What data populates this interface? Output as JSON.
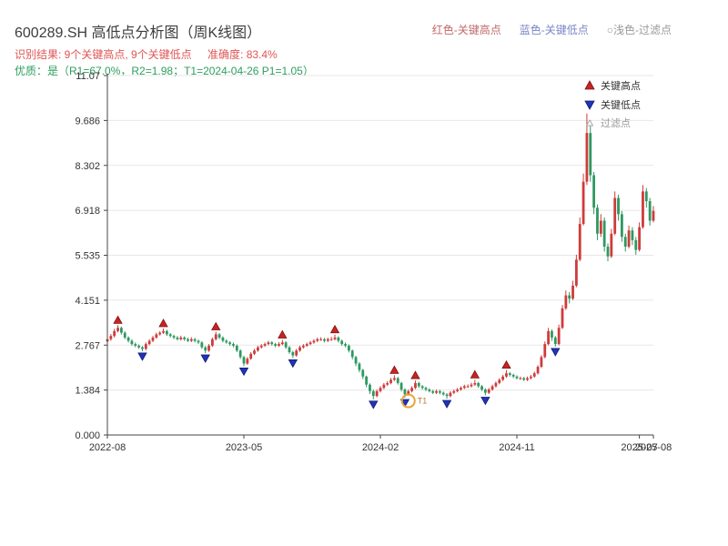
{
  "header": {
    "title": "600289.SH 高低点分析图（周K线图）",
    "top_legend": [
      {
        "label": "红色-关键高点",
        "color": "#c06a6a"
      },
      {
        "label": "蓝色-关键低点",
        "color": "#7b86c8"
      },
      {
        "label": "○浅色-过滤点",
        "color": "#9a9a9a"
      }
    ],
    "result_text": "识别结果: 9个关键高点, 9个关键低点",
    "accuracy_text": "准确度: 83.4%",
    "quality_line": "优质：是（R1=67.0%，R2=1.98；T1=2024-04-26 P1=1.05）"
  },
  "legend": {
    "high": "关键高点",
    "low": "关键低点",
    "filtered": "过滤点"
  },
  "colors": {
    "up": "#cf3b3b",
    "down": "#2e9960",
    "key_high": "#cc2222",
    "key_high_edge": "#7a1010",
    "key_low": "#2233bb",
    "key_low_edge": "#101a6e",
    "grid": "#e7e7e7",
    "axis": "#444444",
    "tick_text": "#333333",
    "annotation": "#e8a33d",
    "annotation_text": "#b08030",
    "filtered": "#aaaaaa"
  },
  "chart_data": {
    "type": "candlestick",
    "title": "600289.SH 高低点分析图（周K线图）",
    "symbol": "600289.SH",
    "period": "weekly",
    "ylim": [
      0,
      11.07
    ],
    "y_max": 11.07,
    "grid": true,
    "legend_position": "upper-right",
    "y_ticks": [
      {
        "v": 0,
        "label": "0.000"
      },
      {
        "v": 1.384,
        "label": "1.384"
      },
      {
        "v": 2.767,
        "label": "2.767"
      },
      {
        "v": 4.151,
        "label": "4.151"
      },
      {
        "v": 5.535,
        "label": "5.535"
      },
      {
        "v": 6.918,
        "label": "6.918"
      },
      {
        "v": 8.302,
        "label": "8.302"
      },
      {
        "v": 9.686,
        "label": "9.686"
      },
      {
        "v": 11.07,
        "label": "11.07"
      }
    ],
    "x_ticks": [
      {
        "i": 0,
        "label": "2022-08"
      },
      {
        "i": 39,
        "label": "2023-05"
      },
      {
        "i": 78,
        "label": "2024-02"
      },
      {
        "i": 117,
        "label": "2024-11"
      },
      {
        "i": 152,
        "label": "2025-07"
      },
      {
        "i": 156,
        "label": "2025-08"
      }
    ],
    "candles": [
      [
        2.88,
        3.01,
        2.83,
        2.95
      ],
      [
        2.95,
        3.11,
        2.9,
        3.05
      ],
      [
        3.05,
        3.27,
        3.0,
        3.2
      ],
      [
        3.2,
        3.38,
        3.16,
        3.3
      ],
      [
        3.3,
        3.34,
        3.09,
        3.15
      ],
      [
        3.15,
        3.19,
        2.95,
        3.0
      ],
      [
        3.0,
        3.04,
        2.85,
        2.9
      ],
      [
        2.9,
        2.95,
        2.75,
        2.8
      ],
      [
        2.8,
        2.85,
        2.7,
        2.75
      ],
      [
        2.75,
        2.79,
        2.65,
        2.7
      ],
      [
        2.7,
        2.74,
        2.58,
        2.65
      ],
      [
        2.65,
        2.85,
        2.61,
        2.8
      ],
      [
        2.8,
        2.95,
        2.76,
        2.9
      ],
      [
        2.9,
        3.05,
        2.86,
        3.0
      ],
      [
        3.0,
        3.15,
        2.96,
        3.1
      ],
      [
        3.1,
        3.2,
        3.06,
        3.15
      ],
      [
        3.15,
        3.28,
        3.11,
        3.2
      ],
      [
        3.2,
        3.24,
        3.05,
        3.1
      ],
      [
        3.1,
        3.14,
        3.0,
        3.05
      ],
      [
        3.05,
        3.09,
        2.95,
        3.0
      ],
      [
        3.0,
        3.05,
        2.91,
        2.95
      ],
      [
        2.95,
        3.06,
        2.91,
        3.0
      ],
      [
        3.0,
        3.04,
        2.9,
        2.95
      ],
      [
        2.95,
        3.0,
        2.86,
        2.9
      ],
      [
        2.9,
        3.01,
        2.86,
        2.95
      ],
      [
        2.95,
        2.99,
        2.85,
        2.9
      ],
      [
        2.9,
        2.94,
        2.8,
        2.85
      ],
      [
        2.85,
        2.89,
        2.65,
        2.7
      ],
      [
        2.7,
        2.74,
        2.52,
        2.6
      ],
      [
        2.6,
        2.8,
        2.56,
        2.75
      ],
      [
        2.75,
        3.0,
        2.71,
        2.95
      ],
      [
        2.95,
        3.18,
        2.91,
        3.1
      ],
      [
        3.1,
        3.14,
        2.95,
        3.0
      ],
      [
        3.0,
        3.04,
        2.85,
        2.9
      ],
      [
        2.9,
        2.95,
        2.81,
        2.85
      ],
      [
        2.85,
        2.89,
        2.75,
        2.8
      ],
      [
        2.8,
        2.85,
        2.7,
        2.75
      ],
      [
        2.75,
        2.79,
        2.55,
        2.6
      ],
      [
        2.6,
        2.64,
        2.34,
        2.4
      ],
      [
        2.4,
        2.44,
        2.12,
        2.2
      ],
      [
        2.2,
        2.4,
        2.16,
        2.35
      ],
      [
        2.35,
        2.55,
        2.31,
        2.5
      ],
      [
        2.5,
        2.65,
        2.46,
        2.6
      ],
      [
        2.6,
        2.75,
        2.56,
        2.7
      ],
      [
        2.7,
        2.8,
        2.66,
        2.75
      ],
      [
        2.75,
        2.85,
        2.71,
        2.8
      ],
      [
        2.8,
        2.9,
        2.76,
        2.85
      ],
      [
        2.85,
        2.89,
        2.75,
        2.8
      ],
      [
        2.8,
        2.84,
        2.7,
        2.75
      ],
      [
        2.75,
        2.86,
        2.71,
        2.8
      ],
      [
        2.8,
        2.93,
        2.76,
        2.85
      ],
      [
        2.85,
        2.89,
        2.65,
        2.7
      ],
      [
        2.7,
        2.74,
        2.5,
        2.55
      ],
      [
        2.55,
        2.59,
        2.37,
        2.45
      ],
      [
        2.45,
        2.65,
        2.41,
        2.6
      ],
      [
        2.6,
        2.75,
        2.56,
        2.7
      ],
      [
        2.7,
        2.8,
        2.66,
        2.75
      ],
      [
        2.75,
        2.85,
        2.71,
        2.8
      ],
      [
        2.8,
        2.9,
        2.76,
        2.85
      ],
      [
        2.85,
        2.95,
        2.81,
        2.9
      ],
      [
        2.9,
        3.0,
        2.86,
        2.95
      ],
      [
        2.95,
        3.01,
        2.9,
        2.95
      ],
      [
        2.95,
        2.99,
        2.85,
        2.9
      ],
      [
        2.9,
        3.0,
        2.86,
        2.95
      ],
      [
        2.95,
        3.02,
        2.9,
        2.95
      ],
      [
        2.95,
        3.09,
        2.91,
        3.0
      ],
      [
        3.0,
        3.04,
        2.85,
        2.9
      ],
      [
        2.9,
        2.94,
        2.75,
        2.8
      ],
      [
        2.8,
        2.85,
        2.7,
        2.75
      ],
      [
        2.75,
        2.79,
        2.54,
        2.6
      ],
      [
        2.6,
        2.63,
        2.33,
        2.4
      ],
      [
        2.4,
        2.44,
        2.12,
        2.2
      ],
      [
        2.2,
        2.24,
        1.93,
        2.0
      ],
      [
        2.0,
        2.04,
        1.72,
        1.8
      ],
      [
        1.8,
        1.83,
        1.47,
        1.55
      ],
      [
        1.55,
        1.59,
        1.26,
        1.35
      ],
      [
        1.35,
        1.4,
        1.1,
        1.2
      ],
      [
        1.2,
        1.4,
        1.16,
        1.35
      ],
      [
        1.35,
        1.5,
        1.31,
        1.45
      ],
      [
        1.45,
        1.6,
        1.41,
        1.55
      ],
      [
        1.55,
        1.66,
        1.51,
        1.6
      ],
      [
        1.6,
        1.76,
        1.56,
        1.7
      ],
      [
        1.7,
        1.84,
        1.66,
        1.75
      ],
      [
        1.75,
        1.79,
        1.55,
        1.6
      ],
      [
        1.6,
        1.64,
        1.34,
        1.4
      ],
      [
        1.4,
        1.44,
        1.15,
        1.25
      ],
      [
        1.25,
        1.4,
        1.21,
        1.35
      ],
      [
        1.35,
        1.5,
        1.31,
        1.45
      ],
      [
        1.45,
        1.68,
        1.41,
        1.6
      ],
      [
        1.6,
        1.64,
        1.45,
        1.5
      ],
      [
        1.5,
        1.54,
        1.4,
        1.45
      ],
      [
        1.45,
        1.49,
        1.35,
        1.4
      ],
      [
        1.4,
        1.44,
        1.31,
        1.35
      ],
      [
        1.35,
        1.39,
        1.26,
        1.3
      ],
      [
        1.3,
        1.4,
        1.26,
        1.35
      ],
      [
        1.35,
        1.39,
        1.25,
        1.3
      ],
      [
        1.3,
        1.34,
        1.21,
        1.25
      ],
      [
        1.25,
        1.29,
        1.12,
        1.2
      ],
      [
        1.2,
        1.35,
        1.16,
        1.3
      ],
      [
        1.3,
        1.4,
        1.26,
        1.35
      ],
      [
        1.35,
        1.45,
        1.31,
        1.4
      ],
      [
        1.4,
        1.5,
        1.36,
        1.45
      ],
      [
        1.45,
        1.55,
        1.41,
        1.5
      ],
      [
        1.5,
        1.56,
        1.45,
        1.5
      ],
      [
        1.5,
        1.61,
        1.46,
        1.55
      ],
      [
        1.55,
        1.7,
        1.51,
        1.6
      ],
      [
        1.6,
        1.64,
        1.45,
        1.5
      ],
      [
        1.5,
        1.54,
        1.35,
        1.4
      ],
      [
        1.4,
        1.44,
        1.22,
        1.3
      ],
      [
        1.3,
        1.45,
        1.26,
        1.4
      ],
      [
        1.4,
        1.55,
        1.36,
        1.5
      ],
      [
        1.5,
        1.65,
        1.46,
        1.6
      ],
      [
        1.6,
        1.75,
        1.56,
        1.7
      ],
      [
        1.7,
        1.85,
        1.66,
        1.8
      ],
      [
        1.8,
        2.0,
        1.76,
        1.9
      ],
      [
        1.9,
        1.94,
        1.8,
        1.85
      ],
      [
        1.85,
        1.89,
        1.75,
        1.8
      ],
      [
        1.8,
        1.84,
        1.71,
        1.75
      ],
      [
        1.75,
        1.8,
        1.7,
        1.75
      ],
      [
        1.75,
        1.79,
        1.66,
        1.7
      ],
      [
        1.7,
        1.8,
        1.66,
        1.75
      ],
      [
        1.75,
        1.85,
        1.71,
        1.8
      ],
      [
        1.8,
        1.95,
        1.76,
        1.9
      ],
      [
        1.9,
        2.15,
        1.86,
        2.1
      ],
      [
        2.1,
        2.46,
        2.06,
        2.4
      ],
      [
        2.4,
        2.88,
        2.36,
        2.8
      ],
      [
        2.8,
        3.3,
        2.76,
        3.2
      ],
      [
        3.2,
        3.25,
        2.9,
        3.0
      ],
      [
        3.0,
        3.05,
        2.72,
        2.8
      ],
      [
        2.8,
        3.4,
        2.76,
        3.3
      ],
      [
        3.3,
        4.0,
        3.26,
        3.9
      ],
      [
        3.9,
        4.45,
        3.85,
        4.3
      ],
      [
        4.3,
        4.4,
        4.05,
        4.2
      ],
      [
        4.2,
        4.75,
        4.15,
        4.6
      ],
      [
        4.6,
        5.55,
        4.55,
        5.4
      ],
      [
        5.4,
        6.7,
        5.35,
        6.5
      ],
      [
        6.5,
        8.05,
        6.45,
        7.8
      ],
      [
        7.8,
        9.9,
        7.7,
        9.3
      ],
      [
        9.3,
        9.69,
        7.8,
        8.0
      ],
      [
        8.0,
        8.1,
        6.8,
        7.0
      ],
      [
        7.0,
        7.1,
        6.0,
        6.2
      ],
      [
        6.2,
        6.8,
        6.1,
        6.6
      ],
      [
        6.6,
        6.7,
        5.65,
        5.8
      ],
      [
        5.8,
        5.9,
        5.35,
        5.5
      ],
      [
        5.5,
        6.35,
        5.45,
        6.2
      ],
      [
        6.2,
        7.5,
        6.15,
        7.3
      ],
      [
        7.3,
        7.4,
        6.6,
        6.8
      ],
      [
        6.8,
        6.9,
        5.95,
        6.1
      ],
      [
        6.1,
        6.2,
        5.65,
        5.8
      ],
      [
        5.8,
        6.45,
        5.75,
        6.3
      ],
      [
        6.3,
        6.4,
        5.85,
        6.0
      ],
      [
        6.0,
        6.1,
        5.55,
        5.7
      ],
      [
        5.7,
        6.55,
        5.65,
        6.4
      ],
      [
        6.4,
        7.7,
        6.35,
        7.5
      ],
      [
        7.5,
        7.6,
        7.0,
        7.2
      ],
      [
        7.2,
        7.3,
        6.45,
        6.6
      ],
      [
        6.6,
        7.05,
        6.55,
        6.9
      ]
    ],
    "key_high_idx": [
      3,
      16,
      31,
      50,
      65,
      82,
      88,
      105,
      114
    ],
    "key_low_idx": [
      10,
      28,
      39,
      53,
      76,
      85,
      97,
      108,
      128
    ],
    "annotation": {
      "i": 86,
      "price": 1.05,
      "label": "T1"
    }
  }
}
